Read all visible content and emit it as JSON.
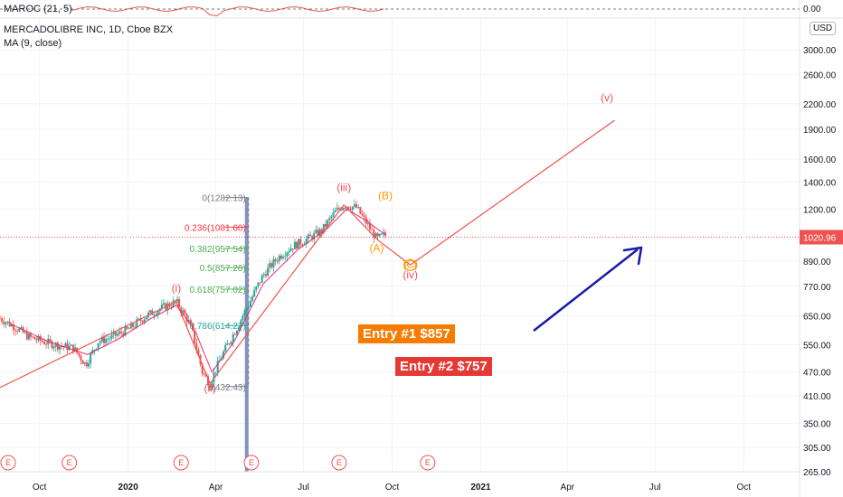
{
  "header": {
    "indicator_name": "MAROC (21, 5)",
    "symbol_title": "MERCADOLIBRE INC, 1D, Cboe BZX",
    "ma_label": "MA (9, close)",
    "indicator_value": "0.00",
    "currency": "USD",
    "last_price": "1020.96"
  },
  "chart_data": {
    "type": "candlestick",
    "scale": "log",
    "ylim": [
      265,
      3600
    ],
    "xlim": [
      "2019-08-21",
      "2021-11-28"
    ],
    "x_ticks": [
      {
        "date": "2019-10-01",
        "label": "Oct"
      },
      {
        "date": "2020-01-01",
        "label": "2020"
      },
      {
        "date": "2020-04-01",
        "label": "Apr"
      },
      {
        "date": "2020-07-01",
        "label": "Jul"
      },
      {
        "date": "2020-10-01",
        "label": "Oct"
      },
      {
        "date": "2021-01-01",
        "label": "2021"
      },
      {
        "date": "2021-04-01",
        "label": "Apr"
      },
      {
        "date": "2021-07-01",
        "label": "Jul"
      },
      {
        "date": "2021-10-01",
        "label": "Oct"
      }
    ],
    "y_ticks": [
      "3000.00",
      "2600.00",
      "2200.00",
      "1900.00",
      "1600.00",
      "1400.00",
      "1200.00",
      "1020.96",
      "890.00",
      "770.00",
      "650.00",
      "550.00",
      "470.00",
      "410.00",
      "350.00",
      "305.00",
      "265.00"
    ],
    "price_path": [
      {
        "date": "2019-08-21",
        "price": 640
      },
      {
        "date": "2019-09-05",
        "price": 610
      },
      {
        "date": "2019-09-20",
        "price": 575
      },
      {
        "date": "2019-10-05",
        "price": 560
      },
      {
        "date": "2019-10-20",
        "price": 548
      },
      {
        "date": "2019-11-05",
        "price": 540
      },
      {
        "date": "2019-11-18",
        "price": 490
      },
      {
        "date": "2019-12-01",
        "price": 560
      },
      {
        "date": "2019-12-15",
        "price": 575
      },
      {
        "date": "2020-01-01",
        "price": 600
      },
      {
        "date": "2020-01-20",
        "price": 650
      },
      {
        "date": "2020-02-05",
        "price": 680
      },
      {
        "date": "2020-02-20",
        "price": 705
      },
      {
        "date": "2020-03-05",
        "price": 620
      },
      {
        "date": "2020-03-18",
        "price": 470
      },
      {
        "date": "2020-03-26",
        "price": 440
      },
      {
        "date": "2020-04-08",
        "price": 520
      },
      {
        "date": "2020-04-22",
        "price": 600
      },
      {
        "date": "2020-05-06",
        "price": 700
      },
      {
        "date": "2020-05-20",
        "price": 820
      },
      {
        "date": "2020-06-05",
        "price": 910
      },
      {
        "date": "2020-06-20",
        "price": 970
      },
      {
        "date": "2020-07-05",
        "price": 1010
      },
      {
        "date": "2020-07-20",
        "price": 1060
      },
      {
        "date": "2020-08-03",
        "price": 1180
      },
      {
        "date": "2020-08-12",
        "price": 1230
      },
      {
        "date": "2020-08-25",
        "price": 1210
      },
      {
        "date": "2020-09-05",
        "price": 1100
      },
      {
        "date": "2020-09-15",
        "price": 1010
      },
      {
        "date": "2020-09-25",
        "price": 1040
      }
    ],
    "ma_path": [
      {
        "date": "2019-09-01",
        "price": 620
      },
      {
        "date": "2019-10-10",
        "price": 560
      },
      {
        "date": "2019-11-20",
        "price": 520
      },
      {
        "date": "2019-12-20",
        "price": 565
      },
      {
        "date": "2020-01-25",
        "price": 640
      },
      {
        "date": "2020-02-20",
        "price": 690
      },
      {
        "date": "2020-03-10",
        "price": 600
      },
      {
        "date": "2020-03-28",
        "price": 470
      },
      {
        "date": "2020-04-20",
        "price": 560
      },
      {
        "date": "2020-05-20",
        "price": 780
      },
      {
        "date": "2020-06-25",
        "price": 950
      },
      {
        "date": "2020-07-25",
        "price": 1070
      },
      {
        "date": "2020-08-15",
        "price": 1200
      },
      {
        "date": "2020-09-05",
        "price": 1120
      },
      {
        "date": "2020-09-25",
        "price": 1030
      }
    ],
    "wave_lines": [
      {
        "from": {
          "date": "2019-08-21",
          "price": 430
        },
        "to": {
          "date": "2020-02-20",
          "price": 705
        }
      },
      {
        "from": {
          "date": "2020-02-20",
          "price": 705
        },
        "to": {
          "date": "2020-03-26",
          "price": 440
        }
      },
      {
        "from": {
          "date": "2020-03-26",
          "price": 440
        },
        "to": {
          "date": "2020-08-12",
          "price": 1230
        }
      },
      {
        "from": {
          "date": "2020-08-12",
          "price": 1230
        },
        "to": {
          "date": "2020-09-15",
          "price": 1010
        }
      },
      {
        "from": {
          "date": "2020-09-15",
          "price": 1010
        },
        "to": {
          "date": "2020-10-20",
          "price": 870
        }
      },
      {
        "from": {
          "date": "2020-10-20",
          "price": 870
        },
        "to": {
          "date": "2021-05-20",
          "price": 2000
        }
      }
    ],
    "wave_labels": [
      {
        "text": "(i)",
        "date": "2020-02-20",
        "price": 745,
        "color": "#ef5350"
      },
      {
        "text": "(ii)",
        "date": "2020-03-26",
        "price": 420,
        "color": "#ef5350"
      },
      {
        "text": "(iii)",
        "date": "2020-08-12",
        "price": 1330,
        "color": "#ef5350"
      },
      {
        "text": "(iv)",
        "date": "2020-10-20",
        "price": 805,
        "color": "#ef5350"
      },
      {
        "text": "(v)",
        "date": "2021-05-12",
        "price": 2230,
        "color": "#ef5350"
      },
      {
        "text": "(A)",
        "date": "2020-09-15",
        "price": 940,
        "color": "#ff9800"
      },
      {
        "text": "(B)",
        "date": "2020-09-24",
        "price": 1270,
        "color": "#ff9800"
      },
      {
        "text": "(C)",
        "date": "2020-10-20",
        "price": 855,
        "color": "#ff9800"
      }
    ],
    "fib_levels": [
      {
        "label": "0(1282.13)",
        "price": 1282.13,
        "color": "#787b86"
      },
      {
        "label": "0.236(1081.60)",
        "price": 1081.6,
        "color": "#f23645"
      },
      {
        "label": "0.382(957.54)",
        "price": 957.54,
        "color": "#4caf50"
      },
      {
        "label": "0.5(857.28)",
        "price": 857.28,
        "color": "#4caf50"
      },
      {
        "label": "0.618(757.02)",
        "price": 757.02,
        "color": "#4caf50"
      },
      {
        "label": "0.786(614.27)",
        "price": 614.27,
        "color": "#26a69a"
      },
      {
        "label": "1(432.43)",
        "price": 432.43,
        "color": "#787b86"
      }
    ],
    "entries": [
      {
        "label": "Entry #1 $857",
        "color": "#f57c00"
      },
      {
        "label": "Entry #2 $757",
        "color": "#e53935"
      }
    ],
    "event_markers": [
      "E",
      "E",
      "E",
      "E",
      "E",
      "E"
    ],
    "arrow_color": "#1a1aa8"
  }
}
